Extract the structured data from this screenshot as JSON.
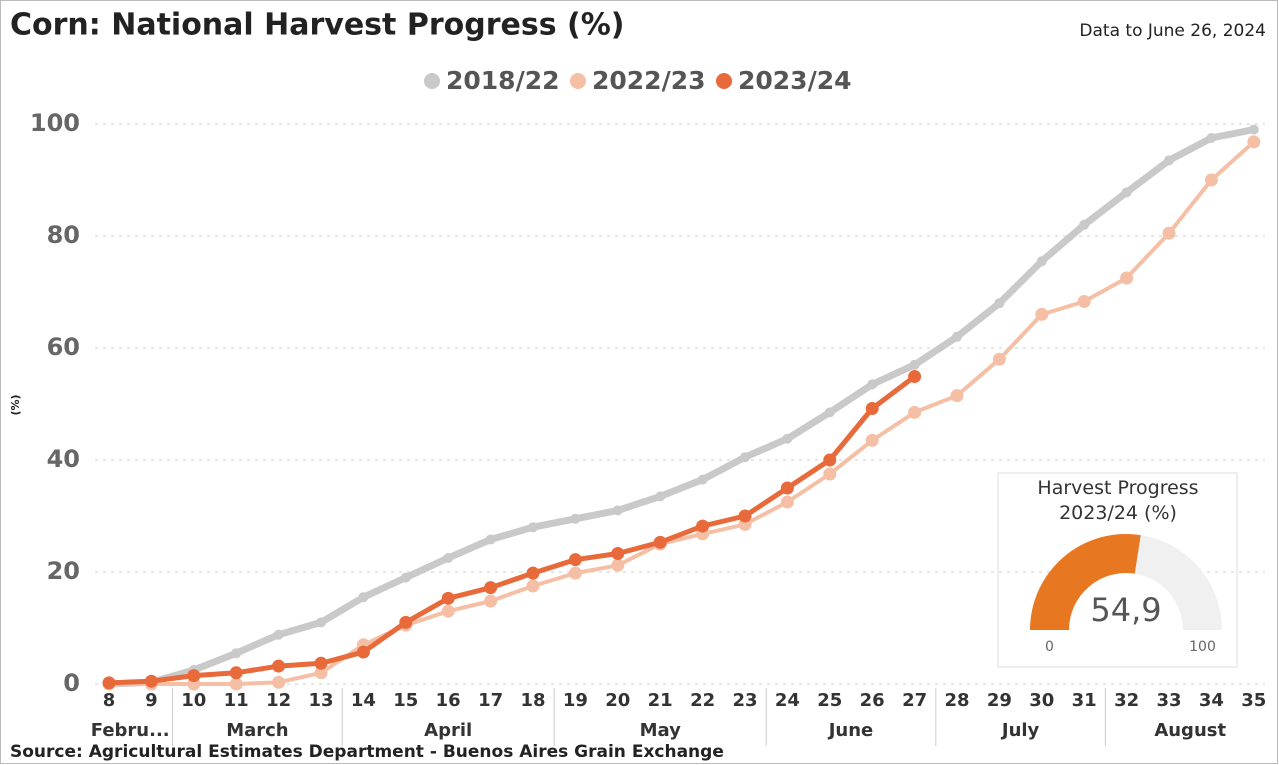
{
  "chart_data": {
    "type": "line",
    "title": "Corn: National Harvest Progress (%)",
    "subtitle": "Data to June 26, 2024",
    "y_label": "(%)",
    "source": "Source: Agricultural Estimates Department - Buenos Aires Grain Exchange",
    "category_groups": [
      {
        "label": "Febru...",
        "categories": [
          "8",
          "9"
        ]
      },
      {
        "label": "March",
        "categories": [
          "10",
          "11",
          "12",
          "13"
        ]
      },
      {
        "label": "April",
        "categories": [
          "14",
          "15",
          "16",
          "17",
          "18"
        ]
      },
      {
        "label": "May",
        "categories": [
          "19",
          "20",
          "21",
          "22",
          "23"
        ]
      },
      {
        "label": "June",
        "categories": [
          "24",
          "25",
          "26",
          "27"
        ]
      },
      {
        "label": "July",
        "categories": [
          "28",
          "29",
          "30",
          "31"
        ]
      },
      {
        "label": "August",
        "categories": [
          "32",
          "33",
          "34",
          "35"
        ]
      }
    ],
    "ylim": [
      0,
      100
    ],
    "yticks": [
      0,
      20,
      40,
      60,
      80,
      100
    ],
    "grid": true,
    "legend": "top",
    "series": [
      {
        "name": "2018/22",
        "color": "#c9c9c9",
        "values": [
          0,
          0.3,
          2.5,
          5.5,
          8.8,
          11,
          15.5,
          19,
          22.5,
          25.8,
          28,
          29.5,
          31,
          33.5,
          36.5,
          40.5,
          43.8,
          48.5,
          53.5,
          57,
          62,
          68,
          75.5,
          82,
          87.8,
          93.5,
          97.5,
          99
        ]
      },
      {
        "name": "2022/23",
        "color": "#f5bfa6",
        "values": [
          0,
          0,
          0,
          0,
          0.3,
          2,
          7,
          10.5,
          13,
          14.8,
          17.5,
          19.8,
          21.2,
          25,
          26.8,
          28.5,
          32.5,
          37.5,
          43.5,
          48.5,
          51.5,
          58,
          66,
          68.3,
          72.5,
          80.5,
          90,
          96.8
        ]
      },
      {
        "name": "2023/24",
        "color": "#e8693a",
        "values": [
          0.2,
          0.5,
          1.5,
          2,
          3.2,
          3.7,
          5.7,
          11,
          15.3,
          17.2,
          19.8,
          22.2,
          23.3,
          25.3,
          28.2,
          30,
          35,
          40,
          49.2,
          54.9,
          null,
          null,
          null,
          null,
          null,
          null,
          null,
          null
        ]
      }
    ],
    "gauge": {
      "title": "Harvest Progress 2023/24 (%)",
      "value": 54.9,
      "value_label": "54,9",
      "min": 0,
      "max": 100,
      "color": "#e87722",
      "track_color": "#f0f0f0"
    }
  }
}
